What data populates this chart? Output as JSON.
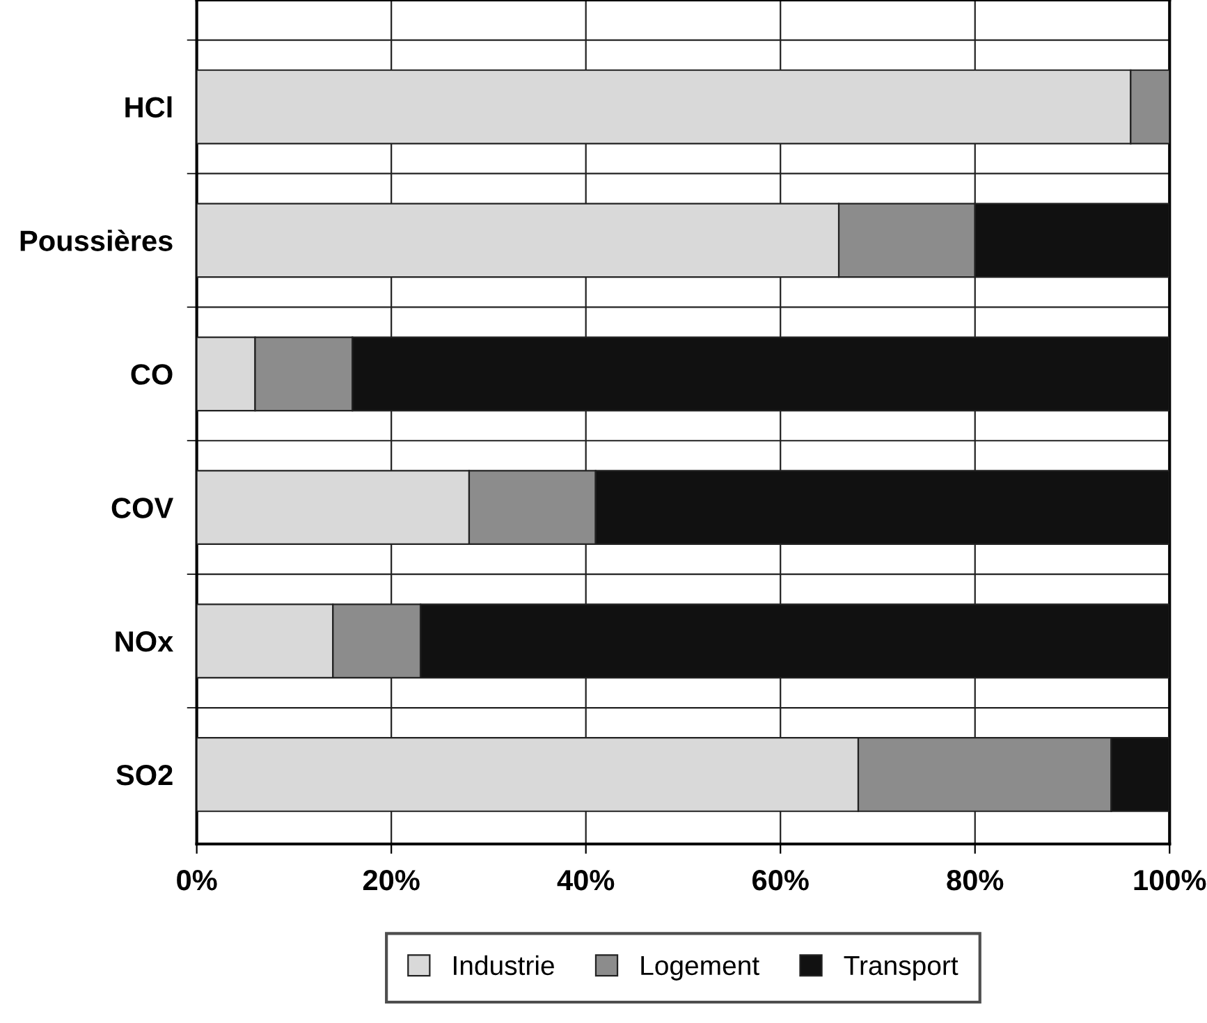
{
  "chart_data": {
    "type": "bar",
    "orientation": "horizontal",
    "stacked": true,
    "categories": [
      "HCl",
      "Poussières",
      "CO",
      "COV",
      "NOx",
      "SO2"
    ],
    "series": [
      {
        "name": "Industrie",
        "color": "#d9d9d9",
        "values": [
          96,
          66,
          6,
          28,
          14,
          68
        ]
      },
      {
        "name": "Logement",
        "color": "#8c8c8c",
        "values": [
          4,
          14,
          10,
          13,
          9,
          26
        ]
      },
      {
        "name": "Transport",
        "color": "#111111",
        "values": [
          null,
          20,
          84,
          59,
          77,
          6
        ]
      }
    ],
    "xlim": [
      0,
      100
    ],
    "xticks": [
      {
        "value": 0,
        "label": "0%"
      },
      {
        "value": 20,
        "label": "20%"
      },
      {
        "value": 40,
        "label": "40%"
      },
      {
        "value": 60,
        "label": "60%"
      },
      {
        "value": 80,
        "label": "80%"
      },
      {
        "value": 100,
        "label": "100%"
      }
    ],
    "grid": true,
    "legend": "bottom"
  }
}
